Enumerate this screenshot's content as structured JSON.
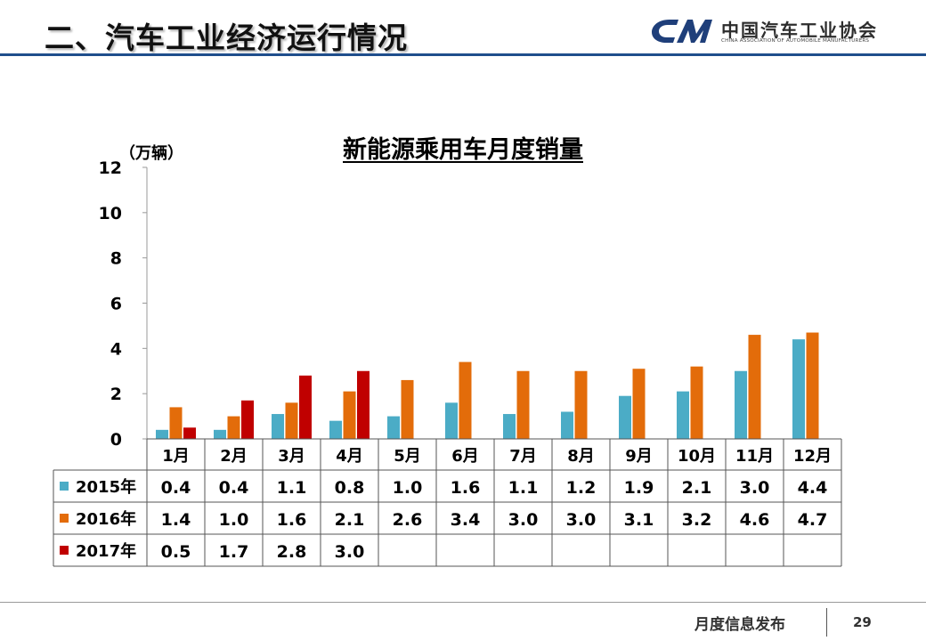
{
  "header": {
    "title": "二、汽车工业经济运行情况",
    "logo_cn": "中国汽车工业协会",
    "logo_en": "CHINA ASSOCIATION OF AUTOMOBILE MANUFACTURERS"
  },
  "colors": {
    "series_2015": "#4bacc6",
    "series_2016": "#e36c0a",
    "series_2017": "#c00000",
    "header_rule": "#1f4e8c"
  },
  "chart_data": {
    "type": "bar",
    "title": "新能源乘用车月度销量",
    "ylabel": "（万辆）",
    "ylim": [
      0,
      12
    ],
    "yticks": [
      "12",
      "10",
      "8",
      "6",
      "4",
      "2",
      "0"
    ],
    "grid": false,
    "legend": "data-table",
    "categories": [
      "1月",
      "2月",
      "3月",
      "4月",
      "5月",
      "6月",
      "7月",
      "8月",
      "9月",
      "10月",
      "11月",
      "12月"
    ],
    "series": [
      {
        "name": "2015年",
        "values": [
          0.4,
          0.4,
          1.1,
          0.8,
          1.0,
          1.6,
          1.1,
          1.2,
          1.9,
          2.1,
          3.0,
          4.4
        ]
      },
      {
        "name": "2016年",
        "values": [
          1.4,
          1.0,
          1.6,
          2.1,
          2.6,
          3.4,
          3.0,
          3.0,
          3.1,
          3.2,
          4.6,
          4.7
        ]
      },
      {
        "name": "2017年",
        "values": [
          0.5,
          1.7,
          2.8,
          3.0,
          null,
          null,
          null,
          null,
          null,
          null,
          null,
          null
        ]
      }
    ],
    "table_values": [
      [
        "0.4",
        "0.4",
        "1.1",
        "0.8",
        "1.0",
        "1.6",
        "1.1",
        "1.2",
        "1.9",
        "2.1",
        "3.0",
        "4.4"
      ],
      [
        "1.4",
        "1.0",
        "1.6",
        "2.1",
        "2.6",
        "3.4",
        "3.0",
        "3.0",
        "3.1",
        "3.2",
        "4.6",
        "4.7"
      ],
      [
        "0.5",
        "1.7",
        "2.8",
        "3.0",
        "",
        "",
        "",
        "",
        "",
        "",
        "",
        ""
      ]
    ]
  },
  "footer": {
    "label": "月度信息发布",
    "page_number": "29"
  }
}
